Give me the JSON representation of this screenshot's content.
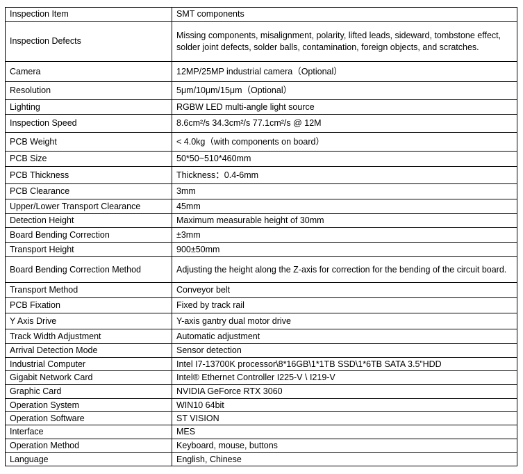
{
  "rows": [
    {
      "label": "Inspection Item",
      "value": "SMT components"
    },
    {
      "label": "Inspection Defects",
      "value": "Missing components, misalignment, polarity, lifted leads, sideward, tombstone effect, solder joint defects, solder balls, contamination, foreign objects, and scratches."
    },
    {
      "label": "Camera",
      "value": "12MP/25MP industrial camera（Optional）"
    },
    {
      "label": "Resolution",
      "value": "5μm/10μm/15μm（Optional）"
    },
    {
      "label": "Lighting",
      "value": "RGBW LED multi-angle light source"
    },
    {
      "label": "Inspection Speed",
      "value": "8.6cm²/s 34.3cm²/s 77.1cm²/s @ 12M"
    },
    {
      "label": "PCB Weight",
      "value": "< 4.0kg（with components on board）"
    },
    {
      "label": "PCB Size",
      "value": "50*50~510*460mm"
    },
    {
      "label": "PCB Thickness",
      "value": "Thickness：0.4-6mm"
    },
    {
      "label": "PCB Clearance",
      "value": "3mm"
    },
    {
      "label": "Upper/Lower Transport Clearance",
      "value": "45mm"
    },
    {
      "label": "Detection Height",
      "value": "Maximum measurable height of 30mm"
    },
    {
      "label": "Board Bending Correction",
      "value": "±3mm"
    },
    {
      "label": "Transport Height",
      "value": "900±50mm"
    },
    {
      "label": "Board Bending Correction Method",
      "value": "Adjusting the height along the Z-axis for correction for the bending of the circuit board."
    },
    {
      "label": "Transport Method",
      "value": "Conveyor belt"
    },
    {
      "label": "PCB Fixation",
      "value": "Fixed by track rail"
    },
    {
      "label": "Y Axis Drive",
      "value": "Y-axis gantry dual motor drive"
    },
    {
      "label": "Track Width Adjustment",
      "value": "Automatic adjustment"
    },
    {
      "label": "Arrival Detection Mode",
      "value": "Sensor detection"
    },
    {
      "label": "Industrial Computer",
      "value": " Intel I7-13700K processor\\8*16GB\\1*1TB SSD\\1*6TB SATA 3.5”HDD"
    },
    {
      "label": "Gigabit Network Card",
      "value": "Intel® Ethernet Controller I225-V \\ I219-V"
    },
    {
      "label": "Graphic Card",
      "value": "NVIDIA GeForce RTX 3060"
    },
    {
      "label": "Operation System",
      "value": "WIN10 64bit"
    },
    {
      "label": "Operation Software",
      "value": "ST VISION"
    },
    {
      "label": "Interface",
      "value": "MES"
    },
    {
      "label": "Operation Method",
      "value": "Keyboard, mouse, buttons"
    },
    {
      "label": "Language",
      "value": "English, Chinese"
    }
  ]
}
